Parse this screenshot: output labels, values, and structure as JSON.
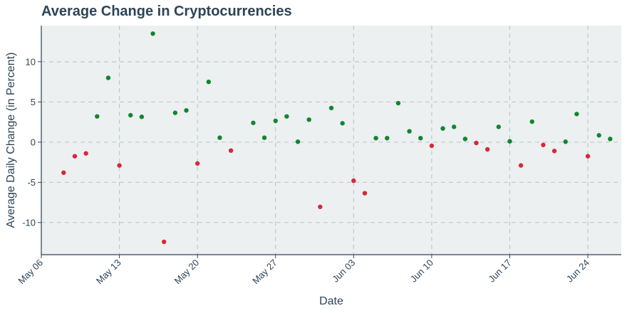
{
  "chart_data": {
    "type": "scatter",
    "title": "Average Change in Cryptocurrencies",
    "xlabel": "Date",
    "ylabel": "Average Daily Change (in Percent)",
    "xlim": [
      "2024-05-06",
      "2024-06-27"
    ],
    "ylim": [
      -14,
      14.5
    ],
    "x_ticks": [
      "2024-05-06",
      "2024-05-13",
      "2024-05-20",
      "2024-05-27",
      "2024-06-03",
      "2024-06-10",
      "2024-06-17",
      "2024-06-24"
    ],
    "x_tick_labels": [
      "May 06",
      "May 13",
      "May 20",
      "May 27",
      "Jun 03",
      "Jun 10",
      "Jun 17",
      "Jun 24"
    ],
    "y_ticks": [
      -10,
      -5,
      0,
      5,
      10
    ],
    "grid": true,
    "colors": {
      "positive": "#11862f",
      "negative": "#d62839",
      "plot_bg": "#ecf0f1",
      "grid": "#c2c7cb",
      "axis": "#2e4457"
    },
    "points": [
      {
        "x": "2024-05-08",
        "y": -3.8
      },
      {
        "x": "2024-05-09",
        "y": -1.75
      },
      {
        "x": "2024-05-10",
        "y": -1.4
      },
      {
        "x": "2024-05-11",
        "y": 3.2
      },
      {
        "x": "2024-05-12",
        "y": 8.0
      },
      {
        "x": "2024-05-13",
        "y": -2.9
      },
      {
        "x": "2024-05-14",
        "y": 3.35
      },
      {
        "x": "2024-05-15",
        "y": 3.15
      },
      {
        "x": "2024-05-16",
        "y": 13.5
      },
      {
        "x": "2024-05-17",
        "y": -12.4
      },
      {
        "x": "2024-05-18",
        "y": 3.65
      },
      {
        "x": "2024-05-19",
        "y": 3.95
      },
      {
        "x": "2024-05-20",
        "y": -2.65
      },
      {
        "x": "2024-05-21",
        "y": 7.5
      },
      {
        "x": "2024-05-22",
        "y": 0.55
      },
      {
        "x": "2024-05-23",
        "y": -1.05
      },
      {
        "x": "2024-05-25",
        "y": 2.4
      },
      {
        "x": "2024-05-26",
        "y": 0.55
      },
      {
        "x": "2024-05-27",
        "y": 2.65
      },
      {
        "x": "2024-05-28",
        "y": 3.2
      },
      {
        "x": "2024-05-29",
        "y": 0.05
      },
      {
        "x": "2024-05-30",
        "y": 2.8
      },
      {
        "x": "2024-05-31",
        "y": -8.05
      },
      {
        "x": "2024-06-01",
        "y": 4.25
      },
      {
        "x": "2024-06-02",
        "y": 2.35
      },
      {
        "x": "2024-06-03",
        "y": -4.8
      },
      {
        "x": "2024-06-04",
        "y": -6.35
      },
      {
        "x": "2024-06-05",
        "y": 0.5
      },
      {
        "x": "2024-06-06",
        "y": 0.5
      },
      {
        "x": "2024-06-07",
        "y": 4.85
      },
      {
        "x": "2024-06-08",
        "y": 1.35
      },
      {
        "x": "2024-06-09",
        "y": 0.5
      },
      {
        "x": "2024-06-10",
        "y": -0.45
      },
      {
        "x": "2024-06-11",
        "y": 1.7
      },
      {
        "x": "2024-06-12",
        "y": 1.9
      },
      {
        "x": "2024-06-13",
        "y": 0.4
      },
      {
        "x": "2024-06-14",
        "y": -0.1
      },
      {
        "x": "2024-06-15",
        "y": -0.9
      },
      {
        "x": "2024-06-16",
        "y": 1.9
      },
      {
        "x": "2024-06-17",
        "y": 0.1
      },
      {
        "x": "2024-06-18",
        "y": -2.9
      },
      {
        "x": "2024-06-19",
        "y": 2.55
      },
      {
        "x": "2024-06-20",
        "y": -0.35
      },
      {
        "x": "2024-06-21",
        "y": -1.1
      },
      {
        "x": "2024-06-22",
        "y": 0.05
      },
      {
        "x": "2024-06-23",
        "y": 3.5
      },
      {
        "x": "2024-06-24",
        "y": -1.75
      },
      {
        "x": "2024-06-25",
        "y": 0.85
      },
      {
        "x": "2024-06-26",
        "y": 0.4
      }
    ]
  }
}
